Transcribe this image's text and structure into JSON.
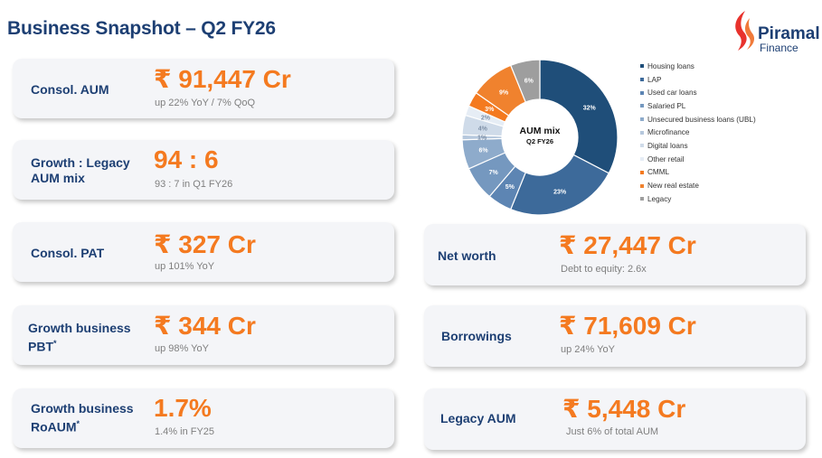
{
  "header": {
    "title": "Business Snapshot – Q2 FY26"
  },
  "logo": {
    "icon": "piramal-logo-icon",
    "name": "Piramal",
    "sub": "Finance"
  },
  "colors": {
    "navy": "#1d3f73",
    "orange": "#f47a20",
    "card": "#f4f5f8",
    "muted": "#7f7f7f"
  },
  "cards_left": [
    {
      "label_line1": "Consol. AUM",
      "label_line2": "",
      "value": "₹ 91,447 Cr",
      "sub": "up 22% YoY / 7% QoQ"
    },
    {
      "label_line1": "Growth : Legacy",
      "label_line2": "AUM mix",
      "value": "94 : 6",
      "sub": "93 : 7 in Q1 FY26"
    },
    {
      "label_line1": "Consol. PAT",
      "label_line2": "",
      "value": "₹ 327 Cr",
      "sub": "up 101% YoY"
    },
    {
      "label_line1": "Growth business",
      "label_line2": "PBT",
      "marker": "*",
      "value": "₹ 344 Cr",
      "sub": "up 98% YoY"
    },
    {
      "label_line1": "Growth business",
      "label_line2": "RoAUM",
      "marker": "*",
      "value": "1.7%",
      "sub": "1.4% in FY25"
    }
  ],
  "cards_right": [
    {
      "label": "Net worth",
      "value": "₹ 27,447 Cr",
      "sub": "Debt to equity: 2.6x"
    },
    {
      "label": "Borrowings",
      "value": "₹ 71,609 Cr",
      "sub": "up 24% YoY"
    },
    {
      "label": "Legacy AUM",
      "value": "₹ 5,448 Cr",
      "sub": "Just 6% of total AUM"
    }
  ],
  "chart_data": {
    "type": "pie",
    "variant": "donut",
    "title": "AUM mix",
    "subtitle": "Q2 FY26",
    "legend_position": "right",
    "slices": [
      {
        "name": "Housing loans",
        "value": 32,
        "label": "32%",
        "color": "#1f4e79"
      },
      {
        "name": "LAP",
        "value": 23,
        "label": "23%",
        "color": "#3d6a9a"
      },
      {
        "name": "Used car loans",
        "value": 5,
        "label": "5%",
        "color": "#5d85b3"
      },
      {
        "name": "Salaried PL",
        "value": 7,
        "label": "7%",
        "color": "#7598bf"
      },
      {
        "name": "Unsecured business loans (UBL)",
        "value": 6,
        "label": "6%",
        "color": "#8eabcb"
      },
      {
        "name": "Microfinance",
        "value": 1,
        "label": "1%",
        "color": "#b6c8dd"
      },
      {
        "name": "Digital loans",
        "value": 4,
        "label": "4%",
        "color": "#cfdbe9"
      },
      {
        "name": "Other retail",
        "value": 2,
        "label": "2%",
        "color": "#e6edf5"
      },
      {
        "name": "CMML",
        "value": 3,
        "label": "3%",
        "color": "#f47a20"
      },
      {
        "name": "New real estate",
        "value": 9,
        "label": "9%",
        "color": "#f0822e"
      },
      {
        "name": "Legacy",
        "value": 6,
        "label": "6%",
        "color": "#9e9e9e"
      }
    ]
  }
}
